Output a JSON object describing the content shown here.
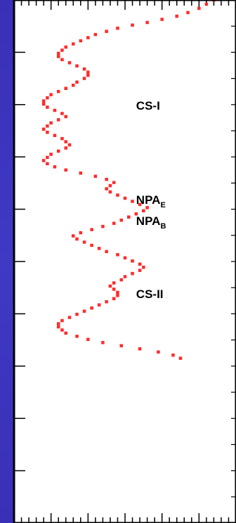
{
  "chart_data": {
    "type": "scatter",
    "title": "",
    "xlabel": "",
    "ylabel": "",
    "grid": false,
    "marker_color": "#ff2a2a",
    "background_color": "#ffffff",
    "frame_color": "#000000",
    "xlim": [
      0,
      30
    ],
    "ylim": [
      0,
      100
    ],
    "points": [
      [
        27.0,
        100.0
      ],
      [
        26.0,
        99.2
      ],
      [
        25.0,
        98.4
      ],
      [
        23.5,
        97.6
      ],
      [
        22.0,
        96.9
      ],
      [
        20.0,
        96.3
      ],
      [
        18.0,
        95.7
      ],
      [
        16.0,
        95.2
      ],
      [
        14.0,
        94.6
      ],
      [
        12.5,
        94.0
      ],
      [
        11.0,
        93.4
      ],
      [
        10.0,
        92.8
      ],
      [
        9.0,
        92.2
      ],
      [
        8.0,
        91.6
      ],
      [
        7.0,
        91.0
      ],
      [
        6.5,
        90.4
      ],
      [
        6.0,
        89.8
      ],
      [
        6.0,
        89.2
      ],
      [
        6.5,
        88.6
      ],
      [
        7.5,
        88.0
      ],
      [
        8.5,
        87.4
      ],
      [
        9.5,
        86.8
      ],
      [
        10.0,
        86.2
      ],
      [
        10.0,
        85.6
      ],
      [
        9.5,
        85.0
      ],
      [
        8.5,
        84.3
      ],
      [
        8.0,
        83.7
      ],
      [
        7.0,
        83.1
      ],
      [
        6.0,
        82.5
      ],
      [
        5.0,
        81.9
      ],
      [
        4.5,
        81.3
      ],
      [
        4.0,
        80.7
      ],
      [
        4.0,
        80.1
      ],
      [
        4.5,
        79.5
      ],
      [
        5.5,
        78.9
      ],
      [
        6.5,
        78.3
      ],
      [
        7.0,
        77.7
      ],
      [
        6.0,
        77.1
      ],
      [
        5.0,
        76.5
      ],
      [
        4.5,
        75.9
      ],
      [
        4.0,
        75.3
      ],
      [
        4.5,
        74.7
      ],
      [
        5.5,
        74.1
      ],
      [
        6.5,
        73.5
      ],
      [
        7.0,
        72.9
      ],
      [
        7.5,
        72.3
      ],
      [
        7.0,
        71.7
      ],
      [
        6.0,
        71.1
      ],
      [
        5.0,
        70.5
      ],
      [
        4.5,
        69.9
      ],
      [
        4.0,
        69.3
      ],
      [
        4.5,
        68.7
      ],
      [
        5.5,
        68.1
      ],
      [
        7.0,
        67.5
      ],
      [
        9.0,
        66.9
      ],
      [
        11.0,
        66.3
      ],
      [
        12.5,
        65.7
      ],
      [
        13.5,
        65.1
      ],
      [
        13.0,
        64.5
      ],
      [
        12.5,
        63.9
      ],
      [
        13.0,
        63.3
      ],
      [
        14.0,
        62.7
      ],
      [
        15.0,
        62.1
      ],
      [
        16.0,
        61.5
      ],
      [
        17.0,
        60.9
      ],
      [
        18.0,
        60.3
      ],
      [
        17.5,
        59.7
      ],
      [
        16.5,
        59.1
      ],
      [
        15.5,
        58.5
      ],
      [
        14.5,
        57.9
      ],
      [
        13.5,
        57.3
      ],
      [
        12.0,
        56.7
      ],
      [
        10.5,
        56.1
      ],
      [
        9.0,
        55.5
      ],
      [
        8.0,
        54.9
      ],
      [
        8.5,
        54.3
      ],
      [
        9.5,
        53.7
      ],
      [
        10.5,
        53.1
      ],
      [
        11.5,
        52.5
      ],
      [
        12.5,
        51.9
      ],
      [
        14.0,
        51.3
      ],
      [
        15.0,
        50.7
      ],
      [
        16.0,
        50.1
      ],
      [
        17.0,
        49.5
      ],
      [
        17.5,
        48.9
      ],
      [
        17.0,
        48.3
      ],
      [
        16.0,
        47.7
      ],
      [
        15.0,
        47.1
      ],
      [
        14.5,
        46.5
      ],
      [
        13.5,
        45.9
      ],
      [
        13.0,
        45.3
      ],
      [
        13.5,
        44.7
      ],
      [
        14.0,
        44.1
      ],
      [
        14.0,
        43.5
      ],
      [
        13.5,
        42.9
      ],
      [
        12.5,
        42.3
      ],
      [
        11.5,
        41.7
      ],
      [
        10.5,
        41.1
      ],
      [
        9.5,
        40.5
      ],
      [
        8.5,
        39.9
      ],
      [
        7.5,
        39.3
      ],
      [
        6.5,
        38.7
      ],
      [
        6.0,
        38.1
      ],
      [
        6.0,
        37.5
      ],
      [
        6.5,
        36.9
      ],
      [
        7.0,
        36.3
      ],
      [
        8.5,
        35.7
      ],
      [
        10.0,
        35.1
      ],
      [
        12.0,
        34.5
      ],
      [
        14.5,
        33.9
      ],
      [
        17.0,
        33.3
      ],
      [
        19.5,
        32.7
      ],
      [
        21.5,
        32.1
      ],
      [
        22.5,
        31.5
      ]
    ],
    "annotations": [
      {
        "text": "CS-I",
        "x": 16.5,
        "y": 79.0
      },
      {
        "text": "NPA",
        "sub": "E",
        "x": 16.5,
        "y": 61.0
      },
      {
        "text": "NPA",
        "sub": "B",
        "x": 16.5,
        "y": 57.0
      },
      {
        "text": "CS-II",
        "x": 16.5,
        "y": 43.0
      }
    ]
  }
}
